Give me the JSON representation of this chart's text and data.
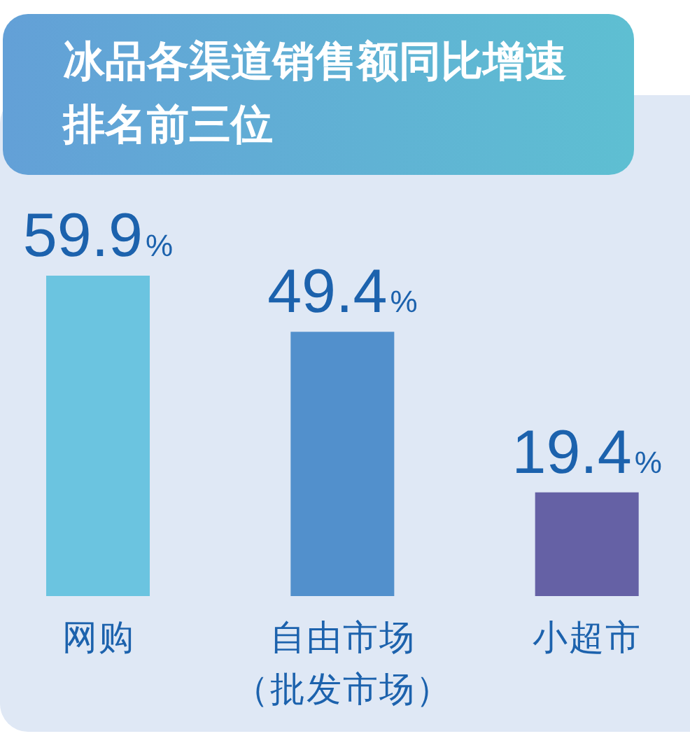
{
  "chart_data": {
    "type": "bar",
    "title": "冰品各渠道销售额同比增速排名前三位",
    "categories": [
      "网购",
      "自由市场（批发市场）",
      "小超市"
    ],
    "values": [
      59.9,
      49.4,
      19.4
    ],
    "colors": [
      "#6bc4e0",
      "#5290cc",
      "#6561a5"
    ],
    "value_labels": [
      "59.9%",
      "49.4%",
      "19.4%"
    ]
  }
}
